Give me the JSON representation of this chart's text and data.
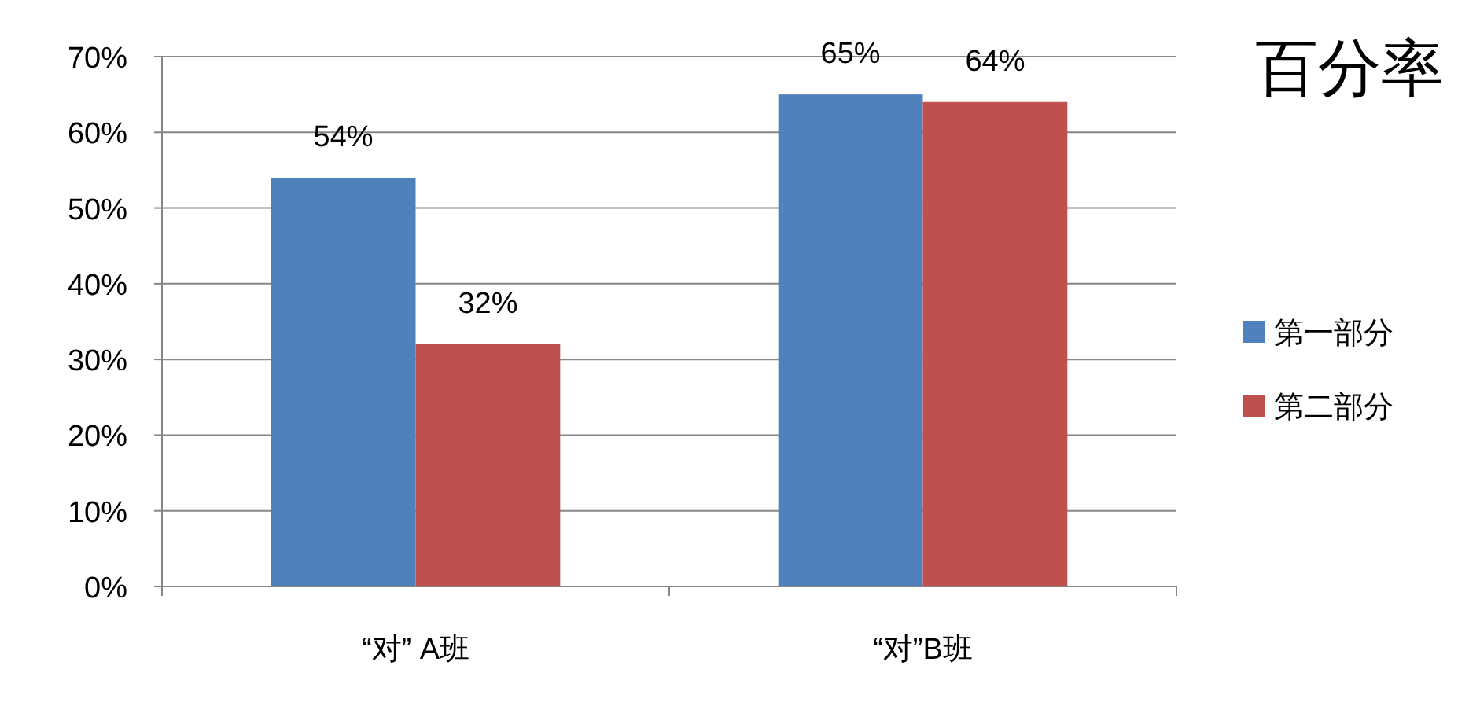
{
  "chart_data": {
    "type": "bar",
    "title": "百分率",
    "categories": [
      "“对” A班",
      "“对”B班"
    ],
    "series": [
      {
        "name": "第一部分",
        "color": "#4f81bd",
        "values": [
          54,
          65
        ],
        "value_labels": [
          "54%",
          "65%"
        ]
      },
      {
        "name": "第二部分",
        "color": "#c0504d",
        "values": [
          32,
          64
        ],
        "value_labels": [
          "32%",
          "64%"
        ]
      }
    ],
    "ylim": [
      0,
      70
    ],
    "yticks": [
      {
        "value": 0,
        "label": "0%"
      },
      {
        "value": 10,
        "label": "10%"
      },
      {
        "value": 20,
        "label": "20%"
      },
      {
        "value": 30,
        "label": "30%"
      },
      {
        "value": 40,
        "label": "40%"
      },
      {
        "value": 50,
        "label": "50%"
      },
      {
        "value": 60,
        "label": "60%"
      },
      {
        "value": 70,
        "label": "70%"
      }
    ],
    "grid": "y",
    "legend": "right"
  }
}
